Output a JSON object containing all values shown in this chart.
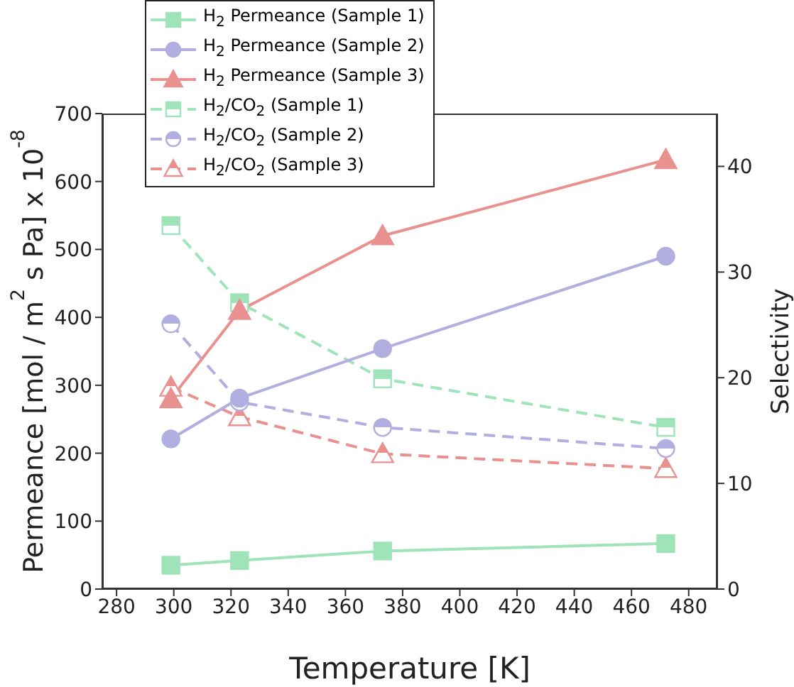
{
  "chart_data": {
    "type": "line",
    "xlabel": "Temperature [K]",
    "ylabel": "Permeance [mol / m$^{2}$ s Pa] x 10$^{-8}$",
    "y2label": "Selectivity",
    "x": [
      299,
      323,
      373,
      472
    ],
    "xlim": [
      275,
      490
    ],
    "xticks": [
      280,
      300,
      320,
      340,
      360,
      380,
      400,
      420,
      440,
      460,
      480
    ],
    "ylim": [
      0,
      700
    ],
    "yticks": [
      0,
      100,
      200,
      300,
      400,
      500,
      600,
      700
    ],
    "y2lim": [
      0,
      45
    ],
    "y2ticks": [
      0,
      10,
      20,
      30,
      40
    ],
    "grid": false,
    "legend": "top left",
    "series": [
      {
        "name": "H$_{2}$ Permeance (Sample 1)",
        "color": "#9fe3b8",
        "marker": "square",
        "line_style": "solid",
        "values": [
          35,
          42,
          56,
          67
        ]
      },
      {
        "name": "H$_{2}$ Permeance (Sample 2)",
        "color": "#b3aee0",
        "marker": "circle",
        "line_style": "solid",
        "values": [
          221,
          281,
          354,
          490
        ]
      },
      {
        "name": "H$_{2}$ Permeance (Sample 3)",
        "color": "#e8918f",
        "marker": "triangle",
        "line_style": "solid",
        "values": [
          280,
          410,
          520,
          632
        ]
      },
      {
        "name": "H$_{2}$/CO$_{2}$ (Sample 1)",
        "color": "#9fe3b8",
        "marker": "square",
        "line_style": "dashed",
        "axis": "y2",
        "values": [
          34.4,
          27.1,
          19.9,
          15.3
        ]
      },
      {
        "name": "H$_{2}$/CO$_{2}$ (Sample 2)",
        "color": "#b3aee0",
        "marker": "circle",
        "line_style": "dashed",
        "axis": "y2",
        "values": [
          25.1,
          17.7,
          15.3,
          13.3
        ]
      },
      {
        "name": "H$_{2}$/CO$_{2}$ (Sample 3)",
        "color": "#e8918f",
        "marker": "triangle",
        "line_style": "dashed",
        "axis": "y2",
        "values": [
          19.1,
          16.3,
          12.8,
          11.4
        ]
      }
    ]
  }
}
